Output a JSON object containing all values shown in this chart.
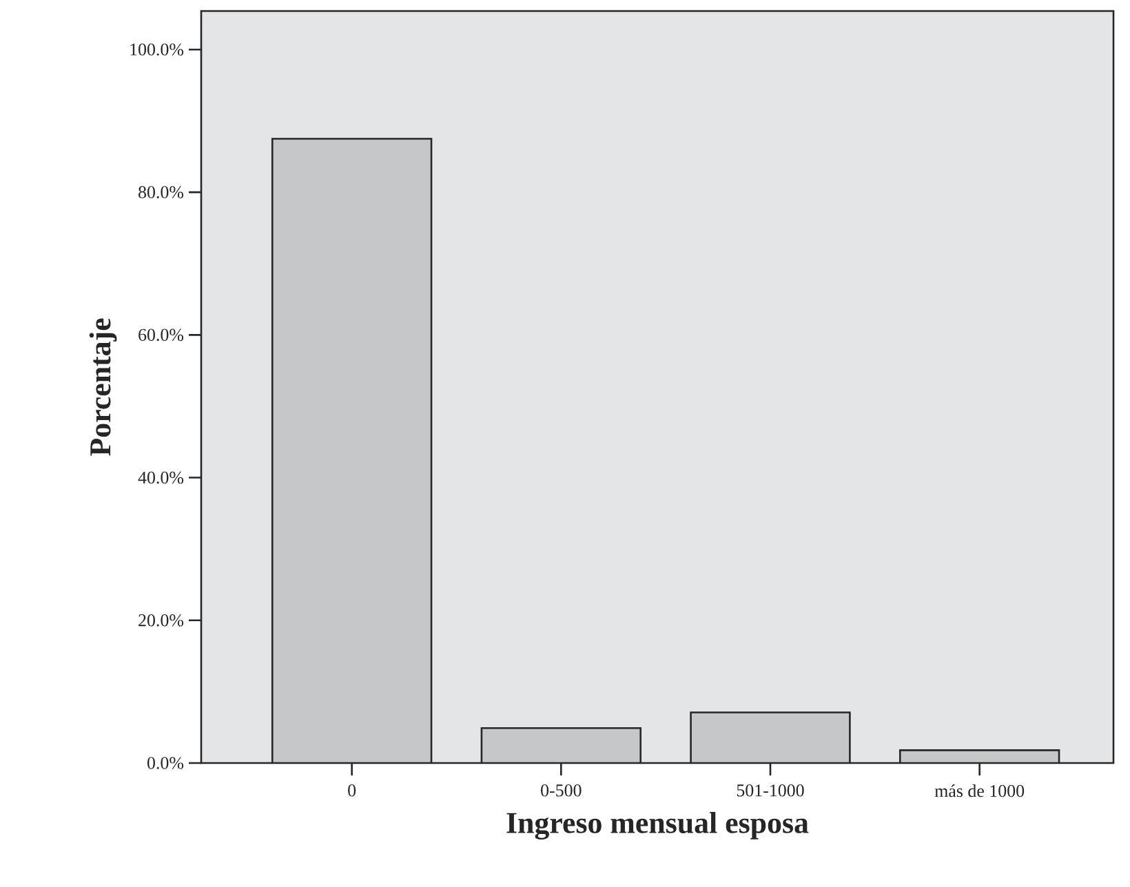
{
  "chart_data": {
    "type": "bar",
    "xlabel": "Ingreso mensual esposa",
    "ylabel": "Porcentaje",
    "categories": [
      "0",
      "0-500",
      "501-1000",
      "más de 1000"
    ],
    "values": [
      87.5,
      4.9,
      7.1,
      1.8
    ],
    "color": "#c6c7c9",
    "ylim": [
      0,
      105.4
    ],
    "yticks": [
      {
        "value": 0,
        "label": "0.0%"
      },
      {
        "value": 20,
        "label": "20.0%"
      },
      {
        "value": 40,
        "label": "40.0%"
      },
      {
        "value": 60,
        "label": "60.0%"
      },
      {
        "value": 80,
        "label": "80.0%"
      },
      {
        "value": 100,
        "label": "100.0%"
      }
    ],
    "grid": false,
    "legend": false
  }
}
